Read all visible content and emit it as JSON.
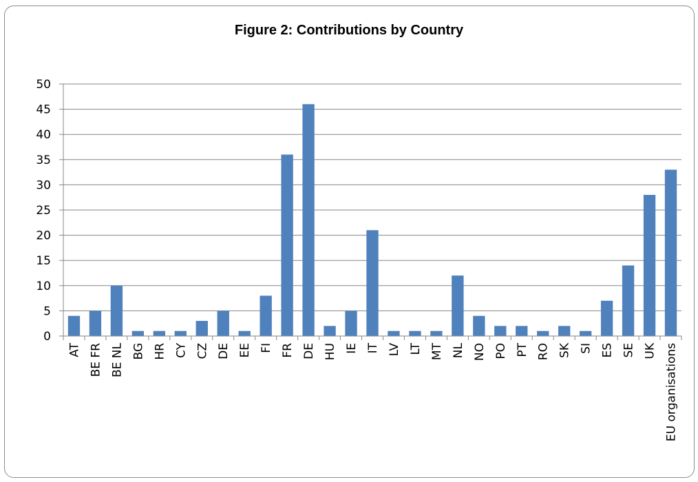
{
  "chart_data": {
    "type": "bar",
    "title": "Figure 2: Contributions by Country",
    "xlabel": "",
    "ylabel": "",
    "categories": [
      "AT",
      "BE FR",
      "BE NL",
      "BG",
      "HR",
      "CY",
      "CZ",
      "DE",
      "EE",
      "FI",
      "FR",
      "DE",
      "HU",
      "IE",
      "IT",
      "LV",
      "LT",
      "MT",
      "NL",
      "NO",
      "PO",
      "PT",
      "RO",
      "SK",
      "SI",
      "ES",
      "SE",
      "UK",
      "EU organisations"
    ],
    "values": [
      4,
      5,
      10,
      1,
      1,
      1,
      3,
      5,
      1,
      8,
      36,
      46,
      2,
      5,
      21,
      1,
      1,
      1,
      12,
      4,
      2,
      2,
      1,
      2,
      1,
      7,
      14,
      28,
      33
    ],
    "ylim": [
      0,
      50
    ],
    "yticks": [
      0,
      5,
      10,
      15,
      20,
      25,
      30,
      35,
      40,
      45,
      50
    ],
    "grid": true,
    "legend": "none",
    "bar_color": "#4f81bd"
  }
}
